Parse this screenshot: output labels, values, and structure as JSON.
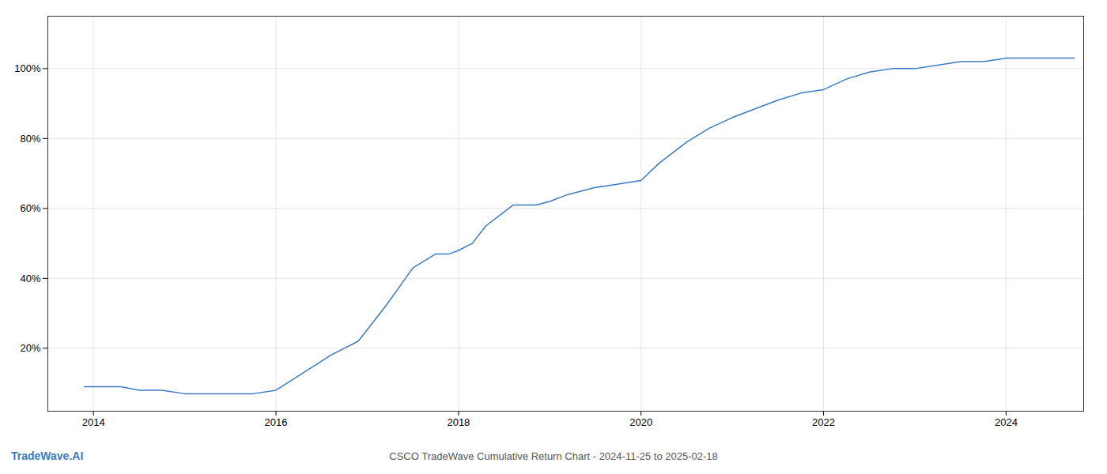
{
  "chart_data": {
    "type": "line",
    "title": "CSCO TradeWave Cumulative Return Chart - 2024-11-25 to 2025-02-18",
    "annotations": [
      {
        "text": "TradeWave.AI",
        "color": "#3a7abf"
      }
    ],
    "color": "#3a7abf",
    "grid": true,
    "x": [
      2013.9,
      2014.1,
      2014.3,
      2014.5,
      2014.75,
      2015.0,
      2015.15,
      2015.3,
      2015.5,
      2015.75,
      2016.0,
      2016.3,
      2016.6,
      2016.9,
      2017.2,
      2017.5,
      2017.75,
      2017.9,
      2018.0,
      2018.15,
      2018.3,
      2018.6,
      2018.85,
      2019.0,
      2019.2,
      2019.5,
      2019.75,
      2020.0,
      2020.2,
      2020.5,
      2020.75,
      2021.0,
      2021.3,
      2021.5,
      2021.75,
      2022.0,
      2022.25,
      2022.5,
      2022.75,
      2023.0,
      2023.25,
      2023.5,
      2023.75,
      2024.0,
      2024.2,
      2024.5,
      2024.75
    ],
    "values": [
      0.09,
      0.09,
      0.09,
      0.08,
      0.08,
      0.07,
      0.07,
      0.07,
      0.07,
      0.07,
      0.08,
      0.13,
      0.18,
      0.22,
      0.32,
      0.43,
      0.47,
      0.47,
      0.48,
      0.5,
      0.55,
      0.61,
      0.61,
      0.62,
      0.64,
      0.66,
      0.67,
      0.68,
      0.73,
      0.79,
      0.83,
      0.86,
      0.89,
      0.91,
      0.93,
      0.94,
      0.97,
      0.99,
      1.0,
      1.0,
      1.01,
      1.02,
      1.02,
      1.03,
      1.03,
      1.03,
      1.03
    ],
    "xlim": [
      2013.5,
      2024.85
    ],
    "xticks": [
      2014,
      2016,
      2018,
      2020,
      2022,
      2024
    ],
    "ylim": [
      0.02,
      1.15
    ],
    "yticks": [
      {
        "value": 0.2,
        "label": "20%"
      },
      {
        "value": 0.4,
        "label": "40%"
      },
      {
        "value": 0.6,
        "label": "60%"
      },
      {
        "value": 0.8,
        "label": "80%"
      },
      {
        "value": 1.0,
        "label": "100%"
      }
    ]
  }
}
